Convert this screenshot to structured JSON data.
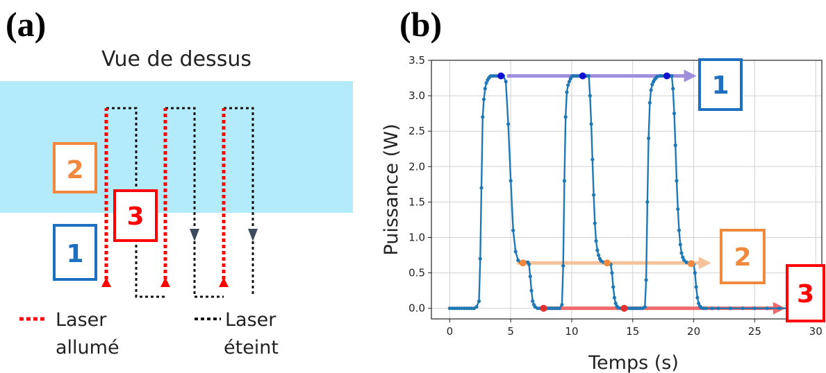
{
  "panel_a": {
    "label": "(a)",
    "title": "Vue de dessus",
    "legend": [
      {
        "label_line1": "Laser",
        "label_line2": "allumé",
        "color": "#ff0000"
      },
      {
        "label_line1": "Laser",
        "label_line2": "éteint",
        "color": "#000000"
      }
    ],
    "zone_color": "#b3ebfa",
    "boxes": [
      {
        "number": "1",
        "color": "#1f6fc0"
      },
      {
        "number": "2",
        "color": "#f0883e"
      },
      {
        "number": "3",
        "color": "#ff0000"
      }
    ]
  },
  "panel_b": {
    "label": "(b)",
    "callouts": [
      {
        "number": "1",
        "color": "#1f6fc0",
        "arrow_color": "#a08fdc"
      },
      {
        "number": "2",
        "color": "#f0883e",
        "arrow_color": "#f5c29a"
      },
      {
        "number": "3",
        "color": "#ff0000",
        "arrow_color": "#ef6b6b"
      }
    ]
  },
  "chart_data": {
    "type": "line",
    "title": "",
    "xlabel": "Temps (s)",
    "ylabel": "Puissance (W)",
    "xlim": [
      -1.5,
      30.5
    ],
    "ylim": [
      -0.15,
      3.5
    ],
    "xticks": [
      0,
      5,
      10,
      15,
      20,
      25,
      30
    ],
    "yticks": [
      0.0,
      0.5,
      1.0,
      1.5,
      2.0,
      2.5,
      3.0,
      3.5
    ],
    "grid": true,
    "series": [
      {
        "color": "#1f77b4",
        "x": [
          0,
          0.2,
          0.4,
          0.6,
          0.8,
          1.0,
          1.2,
          1.4,
          1.6,
          1.8,
          2.0,
          2.2,
          2.4,
          2.5,
          2.6,
          2.7,
          2.8,
          2.9,
          3.0,
          3.1,
          3.2,
          3.3,
          3.4,
          3.6,
          3.8,
          4.0,
          4.2,
          4.4,
          4.6,
          4.8,
          5.0,
          5.2,
          5.4,
          5.6,
          5.8,
          6.0,
          6.2,
          6.4,
          6.5,
          6.6,
          6.7,
          6.8,
          6.9,
          7.0,
          7.2,
          7.4,
          7.6,
          7.8,
          8.0,
          8.2,
          8.4,
          8.6,
          8.8,
          9.0,
          9.2,
          9.3,
          9.4,
          9.5,
          9.6,
          9.7,
          9.8,
          9.9,
          10.0,
          10.1,
          10.2,
          10.4,
          10.6,
          10.8,
          11.0,
          11.2,
          11.4,
          11.5,
          11.6,
          11.7,
          11.8,
          11.9,
          12.0,
          12.1,
          12.2,
          12.3,
          12.4,
          12.6,
          12.8,
          13.0,
          13.2,
          13.3,
          13.4,
          13.5,
          13.6,
          13.7,
          13.8,
          14.0,
          14.2,
          14.4,
          14.6,
          14.8,
          15.0,
          15.2,
          15.4,
          15.6,
          15.8,
          16.0,
          16.1,
          16.2,
          16.3,
          16.4,
          16.5,
          16.6,
          16.7,
          16.8,
          16.9,
          17.0,
          17.2,
          17.4,
          17.6,
          17.8,
          18.0,
          18.2,
          18.3,
          18.4,
          18.5,
          18.6,
          18.7,
          18.8,
          18.9,
          19.0,
          19.1,
          19.2,
          19.4,
          19.6,
          19.8,
          20.0,
          20.1,
          20.2,
          20.3,
          20.4,
          20.5,
          20.6,
          20.8,
          21.0,
          21.5,
          22,
          23,
          24,
          25,
          26,
          27,
          28,
          29,
          30
        ],
        "values": [
          0,
          0,
          0,
          0,
          0,
          0,
          0,
          0,
          0,
          0,
          0,
          0.02,
          0.1,
          0.7,
          1.7,
          2.7,
          2.95,
          3.1,
          3.18,
          3.22,
          3.25,
          3.27,
          3.28,
          3.28,
          3.28,
          3.28,
          3.28,
          3.28,
          3.2,
          2.6,
          1.8,
          1.1,
          0.8,
          0.68,
          0.65,
          0.65,
          0.65,
          0.65,
          0.62,
          0.45,
          0.25,
          0.1,
          0.05,
          0.02,
          0,
          0,
          0,
          0,
          0,
          0,
          0,
          0,
          0,
          0,
          0.05,
          0.6,
          1.8,
          2.7,
          3.05,
          3.15,
          3.2,
          3.24,
          3.27,
          3.28,
          3.28,
          3.28,
          3.28,
          3.28,
          3.28,
          3.28,
          3.28,
          3.0,
          2.6,
          2.1,
          1.6,
          1.2,
          0.95,
          0.82,
          0.75,
          0.7,
          0.67,
          0.65,
          0.64,
          0.63,
          0.62,
          0.5,
          0.3,
          0.15,
          0.07,
          0.03,
          0.01,
          0,
          0,
          0,
          0,
          0,
          0,
          0,
          0,
          0,
          0,
          0.02,
          0.4,
          1.5,
          2.4,
          2.9,
          3.08,
          3.16,
          3.2,
          3.23,
          3.25,
          3.27,
          3.28,
          3.28,
          3.28,
          3.28,
          3.28,
          3.28,
          3.1,
          2.75,
          2.3,
          1.8,
          1.4,
          1.1,
          0.9,
          0.78,
          0.72,
          0.68,
          0.65,
          0.64,
          0.63,
          0.62,
          0.5,
          0.3,
          0.15,
          0.07,
          0.03,
          0.01,
          0,
          0,
          0,
          0,
          0,
          0,
          0,
          0,
          0,
          0,
          0,
          0
        ]
      }
    ],
    "markers": [
      {
        "x": 4.2,
        "y": 3.28,
        "color": "#1010d0"
      },
      {
        "x": 10.9,
        "y": 3.28,
        "color": "#1010d0"
      },
      {
        "x": 17.8,
        "y": 3.28,
        "color": "#1010d0"
      },
      {
        "x": 6.0,
        "y": 0.64,
        "color": "#f0883e"
      },
      {
        "x": 12.9,
        "y": 0.64,
        "color": "#f0883e"
      },
      {
        "x": 19.8,
        "y": 0.63,
        "color": "#f0883e"
      },
      {
        "x": 7.7,
        "y": 0,
        "color": "#e03030"
      },
      {
        "x": 14.3,
        "y": 0,
        "color": "#e03030"
      }
    ]
  }
}
